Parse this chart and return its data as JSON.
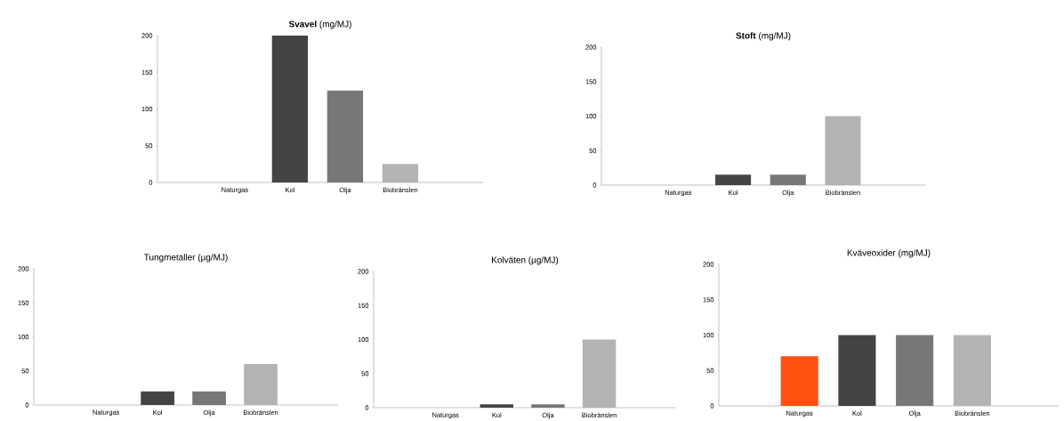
{
  "chart_data": [
    {
      "type": "bar",
      "title": "**Svavel** (mg/MJ)",
      "categories": [
        "Naturgas",
        "Kol",
        "Olja",
        "Biobränslen"
      ],
      "values": [
        0,
        200,
        125,
        25
      ],
      "colors": [
        "#ff5010",
        "#444444",
        "#777777",
        "#b3b3b3"
      ],
      "ylim": [
        0,
        200
      ],
      "yticks": [
        0,
        50,
        100,
        150,
        200
      ]
    },
    {
      "type": "bar",
      "title": "**Stoft** (mg/MJ)",
      "categories": [
        "Naturgas",
        "Kol",
        "Olja",
        "Biobränslen"
      ],
      "values": [
        0,
        15,
        15,
        100
      ],
      "colors": [
        "#ff5010",
        "#444444",
        "#777777",
        "#b3b3b3"
      ],
      "ylim": [
        0,
        200
      ],
      "yticks": [
        0,
        50,
        100,
        150,
        200
      ]
    },
    {
      "type": "bar",
      "title": "Tungmetaller (µg/MJ)",
      "categories": [
        "Naturgas",
        "Kol",
        "Olja",
        "Biobränslen"
      ],
      "values": [
        0,
        20,
        20,
        60
      ],
      "colors": [
        "#ff5010",
        "#444444",
        "#777777",
        "#b3b3b3"
      ],
      "ylim": [
        0,
        200
      ],
      "yticks": [
        0,
        50,
        100,
        150,
        200
      ]
    },
    {
      "type": "bar",
      "title": "Kolväten (µg/MJ)",
      "categories": [
        "Naturgas",
        "Kol",
        "Olja",
        "Biobränslen"
      ],
      "values": [
        0,
        5,
        5,
        100
      ],
      "colors": [
        "#ff5010",
        "#444444",
        "#777777",
        "#b3b3b3"
      ],
      "ylim": [
        0,
        200
      ],
      "yticks": [
        0,
        50,
        100,
        150,
        200
      ]
    },
    {
      "type": "bar",
      "title": "Kväveoxider (mg/MJ)",
      "categories": [
        "Naturgas",
        "Kol",
        "Olja",
        "Biobränslen"
      ],
      "values": [
        70,
        100,
        100,
        100
      ],
      "colors": [
        "#ff5010",
        "#444444",
        "#777777",
        "#b3b3b3"
      ],
      "ylim": [
        0,
        200
      ],
      "yticks": [
        0,
        50,
        100,
        150,
        200
      ]
    }
  ]
}
